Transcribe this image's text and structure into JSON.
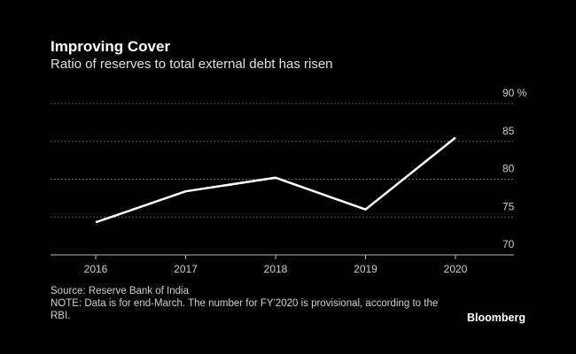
{
  "chart_data": {
    "type": "line",
    "title": "Improving Cover",
    "subtitle": "Ratio of reserves to total external debt has risen",
    "unit": "%",
    "x": [
      "2016",
      "2017",
      "2018",
      "2019",
      "2020"
    ],
    "series": [
      {
        "name": "Reserves to external debt",
        "values": [
          74.3,
          78.4,
          80.2,
          76.0,
          85.5
        ]
      }
    ],
    "ylim": [
      70,
      90
    ],
    "yticks": [
      "70",
      "75",
      "80",
      "85",
      "90"
    ],
    "xlabel": "",
    "ylabel": "",
    "grid": true,
    "line_color": "#ffffff",
    "grid_color": "#777777"
  },
  "footer": {
    "source": "Source: Reserve Bank of India",
    "note": "NOTE: Data is for end-March. The number for FY'2020 is provisional, according to the RBI."
  },
  "brand": "Bloomberg"
}
